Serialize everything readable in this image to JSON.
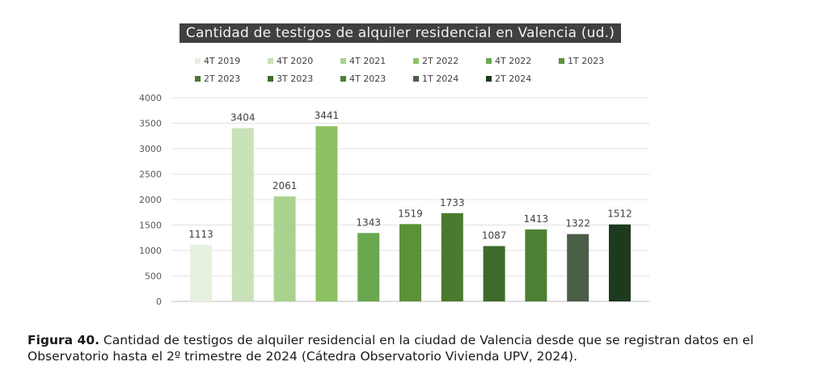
{
  "chart_data": {
    "type": "bar",
    "title": "Cantidad de testigos de alquiler residencial en Valencia (ud.)",
    "categories": [
      "4T 2019",
      "4T 2020",
      "4T 2021",
      "2T 2022",
      "4T 2022",
      "1T 2023",
      "2T 2023",
      "3T 2023",
      "4T 2023",
      "1T 2024",
      "2T 2024"
    ],
    "values": [
      1113,
      3404,
      2061,
      3441,
      1343,
      1519,
      1733,
      1087,
      1413,
      1322,
      1512
    ],
    "colors": [
      "#e7f1df",
      "#c9e2b8",
      "#a8d28d",
      "#8cc263",
      "#6aa84f",
      "#5b9139",
      "#4a7a2e",
      "#3e6a2a",
      "#4c8033",
      "#4a5e45",
      "#1e3a1e"
    ],
    "ylim": [
      0,
      4000
    ],
    "yticks": [
      0,
      500,
      1000,
      1500,
      2000,
      2500,
      3000,
      3500,
      4000
    ],
    "grid": true,
    "legend_position": "top",
    "xlabel": "",
    "ylabel": ""
  },
  "caption": {
    "label": "Figura 40.",
    "text": " Cantidad de testigos de alquiler residencial en la ciudad de Valencia desde que se registran datos en el Observatorio hasta el 2º trimestre de 2024 (Cátedra Observatorio Vivienda UPV, 2024)."
  }
}
